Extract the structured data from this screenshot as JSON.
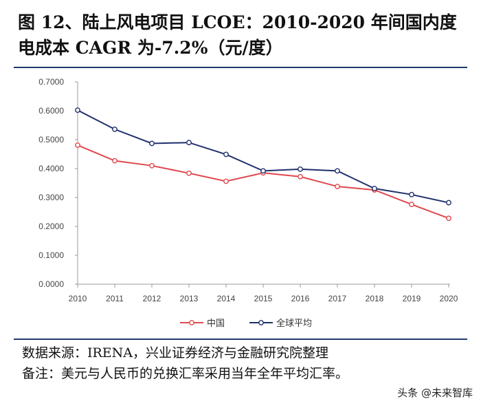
{
  "title_line1": "图 12、陆上风电项目 LCOE：2010-2020 年间国内度",
  "title_line2": "电成本 CAGR 为-7.2%（元/度）",
  "source": "数据来源：IRENA，兴业证券经济与金融研究院整理",
  "remark": "备注：美元与人民币的兑换汇率采用当年全年平均汇率。",
  "watermark": "头条 @未来智库",
  "colors": {
    "china": "#e0474c",
    "global": "#1f2f6b",
    "rule": "#1f3a6b"
  },
  "chart_data": {
    "type": "line",
    "title": "",
    "x": [
      "2010",
      "2011",
      "2012",
      "2013",
      "2014",
      "2015",
      "2016",
      "2017",
      "2018",
      "2019",
      "2020"
    ],
    "series": [
      {
        "name": "中国",
        "values": [
          0.481,
          0.427,
          0.41,
          0.384,
          0.356,
          0.385,
          0.372,
          0.338,
          0.326,
          0.276,
          0.228
        ]
      },
      {
        "name": "全球平均",
        "values": [
          0.602,
          0.536,
          0.487,
          0.49,
          0.449,
          0.392,
          0.398,
          0.392,
          0.331,
          0.31,
          0.282
        ]
      }
    ],
    "ylim": [
      0,
      0.7
    ],
    "yticks": [
      "0.0000",
      "0.1000",
      "0.2000",
      "0.3000",
      "0.4000",
      "0.5000",
      "0.6000",
      "0.7000"
    ],
    "grid": false,
    "legend": "bottom-center"
  }
}
